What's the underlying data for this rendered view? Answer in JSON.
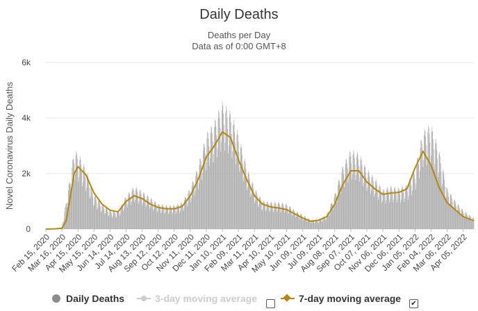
{
  "title": "Daily Deaths",
  "subtitle_line1": "Deaths per Day",
  "subtitle_line2": "Data as of 0:00 GMT+8",
  "colors": {
    "bars": "#a6a6a6",
    "ma7": "#b8860b",
    "ma3": "#cccccc",
    "grid": "#e6e6e6",
    "text": "#333333"
  },
  "legend": {
    "daily": "Daily Deaths",
    "ma3": "3-day moving average",
    "ma7": "7-day moving average",
    "ma3_checked": false,
    "ma7_checked": true
  },
  "chart_data": {
    "type": "bar",
    "ylabel": "Novel Coronavirus Daily Deaths",
    "yticks": [
      "0",
      "2k",
      "4k",
      "6k"
    ],
    "ylim": [
      0,
      6000
    ],
    "grid": true,
    "legend_position": "bottom",
    "xlabels": [
      "Feb 15, 2020",
      "Mar 16, 2020",
      "Apr 15, 2020",
      "May 15, 2020",
      "Jun 14, 2020",
      "Jul 14, 2020",
      "Aug 13, 2020",
      "Sep 12, 2020",
      "Oct 12, 2020",
      "Nov 11, 2020",
      "Dec 11, 2020",
      "Jan 10, 2021",
      "Feb 09, 2021",
      "Mar 11, 2021",
      "Apr 10, 2021",
      "May 10, 2021",
      "Jun 09, 2021",
      "Jul 09, 2021",
      "Aug 08, 2021",
      "Sep 07, 2021",
      "Oct 07, 2021",
      "Nov 06, 2021",
      "Dec 06, 2021",
      "Jan 05, 2022",
      "Feb 04, 2022",
      "Mar 06, 2022",
      "Apr 05, 2022"
    ],
    "x_start": "2020-02-15",
    "x_end": "2022-04-25",
    "series": [
      {
        "name": "Daily Deaths",
        "style": "bar",
        "x": [
          "2020-02-15",
          "2020-03-01",
          "2020-03-16",
          "2020-03-31",
          "2020-04-08",
          "2020-04-15",
          "2020-04-30",
          "2020-05-15",
          "2020-05-30",
          "2020-06-14",
          "2020-06-29",
          "2020-07-14",
          "2020-07-29",
          "2020-08-13",
          "2020-08-28",
          "2020-09-12",
          "2020-09-27",
          "2020-10-12",
          "2020-10-27",
          "2020-11-11",
          "2020-11-26",
          "2020-12-11",
          "2020-12-26",
          "2021-01-10",
          "2021-01-25",
          "2021-02-09",
          "2021-02-24",
          "2021-03-11",
          "2021-03-26",
          "2021-04-10",
          "2021-04-25",
          "2021-05-10",
          "2021-05-25",
          "2021-06-09",
          "2021-06-24",
          "2021-07-09",
          "2021-07-24",
          "2021-08-08",
          "2021-08-23",
          "2021-09-07",
          "2021-09-22",
          "2021-10-07",
          "2021-10-22",
          "2021-11-06",
          "2021-11-21",
          "2021-12-06",
          "2021-12-21",
          "2022-01-05",
          "2022-01-20",
          "2022-02-04",
          "2022-02-19",
          "2022-03-06",
          "2022-03-21",
          "2022-04-05",
          "2022-04-25"
        ],
        "values": [
          0,
          10,
          60,
          1600,
          2500,
          2400,
          1900,
          1100,
          800,
          600,
          550,
          1050,
          1350,
          1200,
          1000,
          800,
          750,
          750,
          850,
          1300,
          2000,
          3000,
          3400,
          4000,
          3700,
          3000,
          2000,
          1300,
          900,
          850,
          850,
          800,
          600,
          450,
          300,
          300,
          450,
          1100,
          2000,
          2500,
          2400,
          1900,
          1600,
          1250,
          1350,
          1300,
          1400,
          1900,
          3100,
          3300,
          2500,
          1300,
          900,
          600,
          350
        ]
      },
      {
        "name": "7-day moving average",
        "style": "line",
        "x": [
          "2020-02-15",
          "2020-03-01",
          "2020-03-16",
          "2020-03-24",
          "2020-03-31",
          "2020-04-08",
          "2020-04-15",
          "2020-04-30",
          "2020-05-15",
          "2020-05-30",
          "2020-06-14",
          "2020-06-29",
          "2020-07-14",
          "2020-07-29",
          "2020-08-13",
          "2020-08-28",
          "2020-09-12",
          "2020-09-27",
          "2020-10-12",
          "2020-10-27",
          "2020-11-11",
          "2020-11-26",
          "2020-12-11",
          "2020-12-26",
          "2021-01-10",
          "2021-01-25",
          "2021-02-09",
          "2021-02-24",
          "2021-03-11",
          "2021-03-26",
          "2021-04-10",
          "2021-04-25",
          "2021-05-10",
          "2021-05-25",
          "2021-06-09",
          "2021-06-24",
          "2021-07-09",
          "2021-07-24",
          "2021-08-08",
          "2021-08-23",
          "2021-09-07",
          "2021-09-22",
          "2021-10-07",
          "2021-10-22",
          "2021-11-06",
          "2021-11-21",
          "2021-12-06",
          "2021-12-21",
          "2022-01-05",
          "2022-01-20",
          "2022-02-04",
          "2022-02-19",
          "2022-03-06",
          "2022-03-21",
          "2022-04-05",
          "2022-04-25"
        ],
        "values": [
          0,
          5,
          30,
          300,
          1100,
          2000,
          2250,
          1950,
          1300,
          900,
          680,
          620,
          1000,
          1200,
          1100,
          900,
          780,
          730,
          730,
          820,
          1200,
          1800,
          2600,
          3000,
          3500,
          3300,
          2500,
          1800,
          1200,
          900,
          800,
          760,
          700,
          550,
          400,
          280,
          320,
          450,
          900,
          1600,
          2100,
          2100,
          1700,
          1450,
          1250,
          1300,
          1320,
          1450,
          2200,
          2800,
          2300,
          1500,
          950,
          700,
          450,
          300
        ]
      }
    ]
  }
}
